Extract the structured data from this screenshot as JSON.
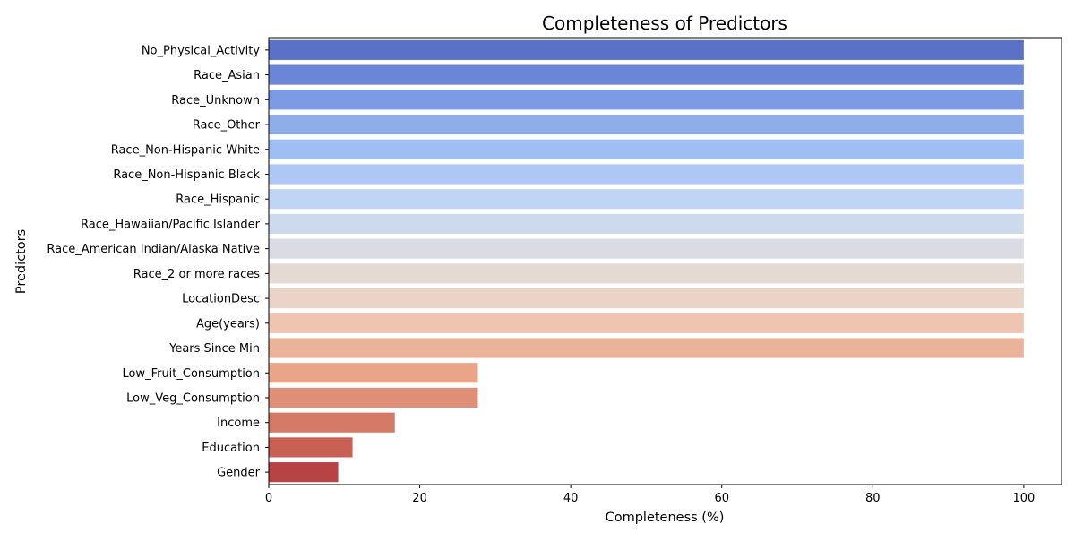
{
  "chart_data": {
    "type": "bar",
    "orientation": "horizontal",
    "title": "Completeness of Predictors",
    "xlabel": "Completeness (%)",
    "ylabel": "Predictors",
    "xlim": [
      0,
      105
    ],
    "xticks": [
      0,
      20,
      40,
      60,
      80,
      100
    ],
    "grid": false,
    "legend": "none",
    "categories": [
      "No_Physical_Activity",
      "Race_Asian",
      "Race_Unknown",
      "Race_Other",
      "Race_Non-Hispanic White",
      "Race_Non-Hispanic Black",
      "Race_Hispanic",
      "Race_Hawaiian/Pacific Islander",
      "Race_American Indian/Alaska Native",
      "Race_2 or more races",
      "LocationDesc",
      "Age(years)",
      "Years Since Min",
      "Low_Fruit_Consumption",
      "Low_Veg_Consumption",
      "Income",
      "Education",
      "Gender"
    ],
    "values": [
      100,
      100,
      100,
      100,
      100,
      100,
      100,
      100,
      100,
      100,
      100,
      100,
      100,
      27.7,
      27.7,
      16.7,
      11.1,
      9.2
    ],
    "colors": [
      "#5b71c7",
      "#6b86d6",
      "#7c9be4",
      "#8eade9",
      "#9fbef3",
      "#afc7f4",
      "#c0d4f5",
      "#cdd9ec",
      "#dadbe3",
      "#e4d9d3",
      "#ead4c7",
      "#efc4b0",
      "#ecb39b",
      "#e9a48a",
      "#df8f77",
      "#d57a66",
      "#c86154",
      "#b74345"
    ]
  }
}
